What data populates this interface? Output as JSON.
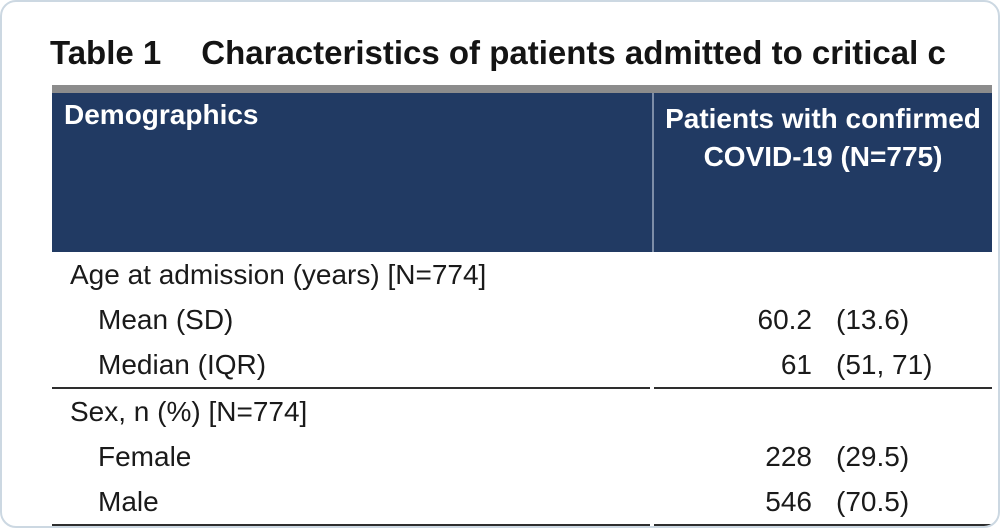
{
  "caption": {
    "label": "Table 1",
    "text": "Characteristics of patients admitted to critical c"
  },
  "table": {
    "header": {
      "col1": "Demographics",
      "col2": "Patients with confirmed COVID-19 (N=775)"
    },
    "sections": [
      {
        "heading": "Age at admission (years) [N=774]",
        "rows": [
          {
            "label": "Mean (SD)",
            "value": "60.2",
            "paren": "(13.6)"
          },
          {
            "label": "Median (IQR)",
            "value": "61",
            "paren": "(51, 71)"
          }
        ]
      },
      {
        "heading": "Sex, n (%) [N=774]",
        "rows": [
          {
            "label": "Female",
            "value": "228",
            "paren": "(29.5)"
          },
          {
            "label": "Male",
            "value": "546",
            "paren": "(70.5)"
          }
        ]
      }
    ]
  },
  "colors": {
    "header_bg": "#213a63",
    "header_text": "#ffffff",
    "top_strip": "#8c8c8c",
    "rule": "#2e2e2e",
    "card_border": "#ccd8e2"
  }
}
